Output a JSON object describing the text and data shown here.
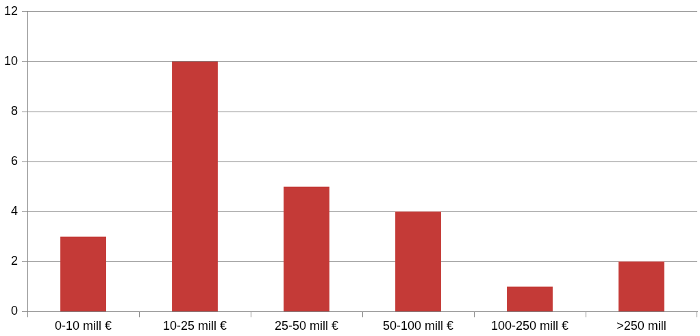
{
  "chart_data": {
    "type": "bar",
    "categories": [
      "0-10 mill €",
      "10-25 mill €",
      "25-50 mill €",
      "50-100 mill €",
      "100-250 mill €",
      ">250 mill"
    ],
    "values": [
      3,
      10,
      5,
      4,
      1,
      2
    ],
    "color": "#c43a37",
    "ylim": [
      0,
      12
    ],
    "yticks": [
      0,
      2,
      4,
      6,
      8,
      10,
      12
    ],
    "grid": "y",
    "legend": false
  }
}
